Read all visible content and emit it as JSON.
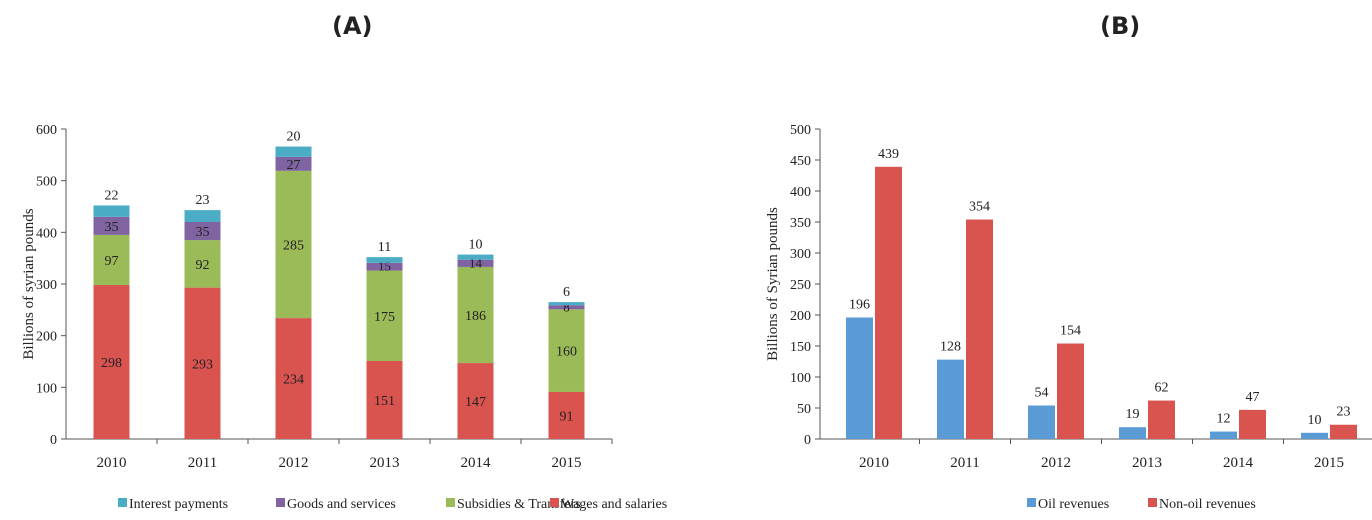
{
  "chart_data": [
    {
      "type": "bar",
      "stacked": true,
      "title": "(A)",
      "ylabel": "Billions of syrian pounds",
      "ylim": [
        0,
        600
      ],
      "yticks": [
        "0",
        "100",
        "200",
        "300",
        "400",
        "500",
        "600"
      ],
      "categories": [
        "2010",
        "2011",
        "2012",
        "2013",
        "2014",
        "2015"
      ],
      "series": [
        {
          "name": "Wages and salaries",
          "color": "#d9534f",
          "values": [
            298,
            293,
            234,
            151,
            147,
            91
          ]
        },
        {
          "name": "Subsidies & Transfers",
          "color": "#9bbb59",
          "values": [
            97,
            92,
            285,
            175,
            186,
            160
          ]
        },
        {
          "name": "Goods and services",
          "color": "#8064a2",
          "values": [
            35,
            35,
            27,
            15,
            14,
            8
          ]
        },
        {
          "name": "Interest payments",
          "color": "#4bacc6",
          "values": [
            22,
            23,
            20,
            11,
            10,
            6
          ]
        }
      ],
      "legend_position": "bottom"
    },
    {
      "type": "bar",
      "stacked": false,
      "title": "(B)",
      "ylabel": "Billions of Syrian pounds",
      "ylim": [
        0,
        500
      ],
      "yticks": [
        "0",
        "50",
        "100",
        "150",
        "200",
        "250",
        "300",
        "350",
        "400",
        "450",
        "500"
      ],
      "categories": [
        "2010",
        "2011",
        "2012",
        "2013",
        "2014",
        "2015"
      ],
      "series": [
        {
          "name": "Oil revenues",
          "color": "#5b9bd5",
          "values": [
            196,
            128,
            54,
            19,
            12,
            10
          ]
        },
        {
          "name": "Non-oil revenues",
          "color": "#d9534f",
          "values": [
            439,
            354,
            154,
            62,
            47,
            23
          ]
        }
      ],
      "legend_position": "bottom"
    }
  ]
}
